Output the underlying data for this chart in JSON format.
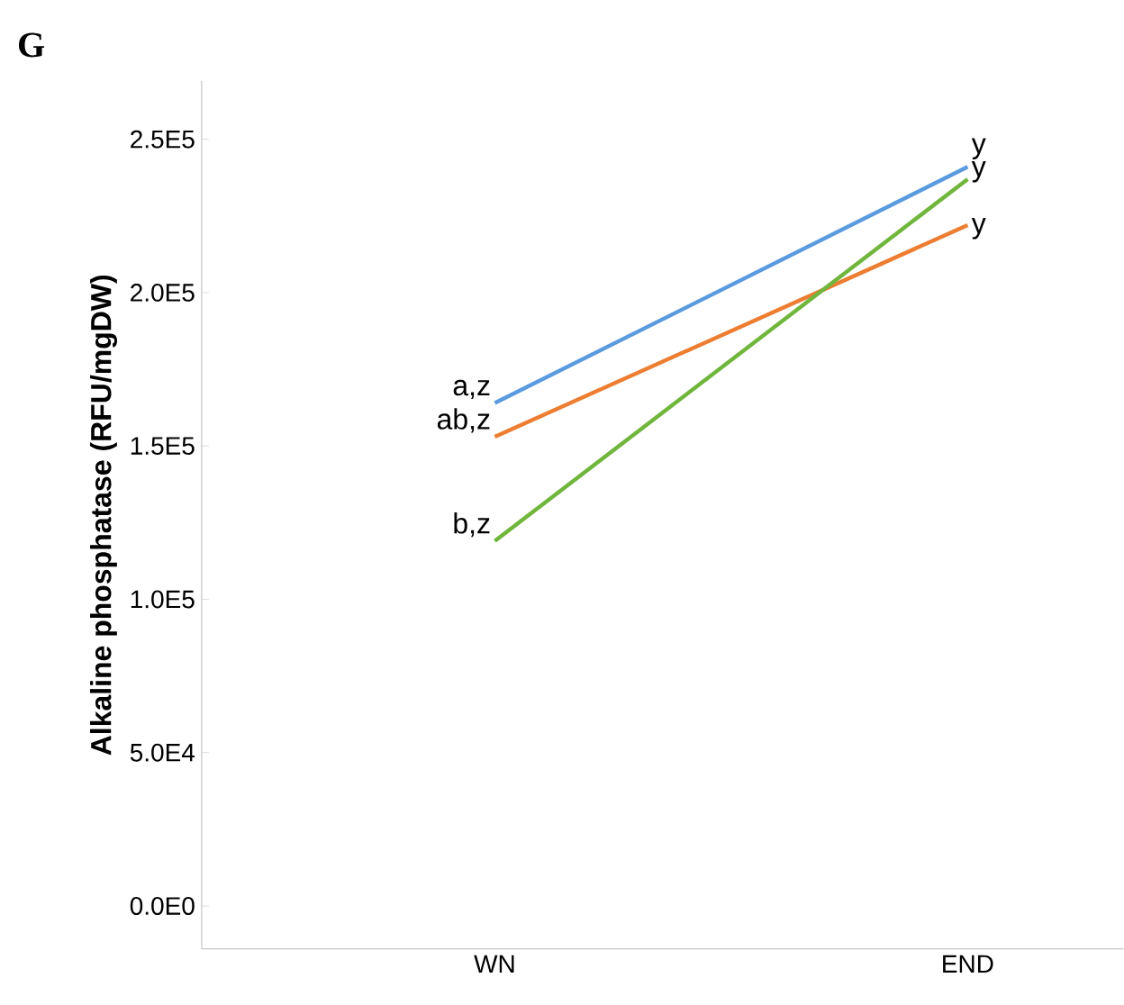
{
  "chart_data": {
    "type": "line",
    "title": "G",
    "ylabel": "Alkaline phosphatase (RFU/mgDW)",
    "categories": [
      "WN",
      "END"
    ],
    "series": [
      {
        "color": "#5a9be0",
        "values": [
          164000,
          241000
        ]
      },
      {
        "color": "#ed7d31",
        "values": [
          153000,
          222000
        ]
      },
      {
        "color": "#70b63c",
        "values": [
          119000,
          237000
        ]
      }
    ],
    "ylim": [
      -14000,
      269000
    ],
    "yticks": [
      {
        "value": 0,
        "label": "0.0E0"
      },
      {
        "value": 50000,
        "label": "5.0E4"
      },
      {
        "value": 100000,
        "label": "1.0E5"
      },
      {
        "value": 150000,
        "label": "1.5E5"
      },
      {
        "value": 200000,
        "label": "2.0E5"
      },
      {
        "value": 250000,
        "label": "2.5E5"
      }
    ],
    "grid": false,
    "legend": false,
    "marker": "none",
    "line_style": "solid",
    "annotations": [
      {
        "text": "a,z",
        "x": "WN",
        "y": 164000
      },
      {
        "text": "ab,z",
        "x": "WN",
        "y": 153000
      },
      {
        "text": "b,z",
        "x": "WN",
        "y": 119000
      },
      {
        "text": "y",
        "x": "END",
        "y": 241000
      },
      {
        "text": "y",
        "x": "END",
        "y": 237000
      },
      {
        "text": "y",
        "x": "END",
        "y": 222000
      }
    ]
  }
}
